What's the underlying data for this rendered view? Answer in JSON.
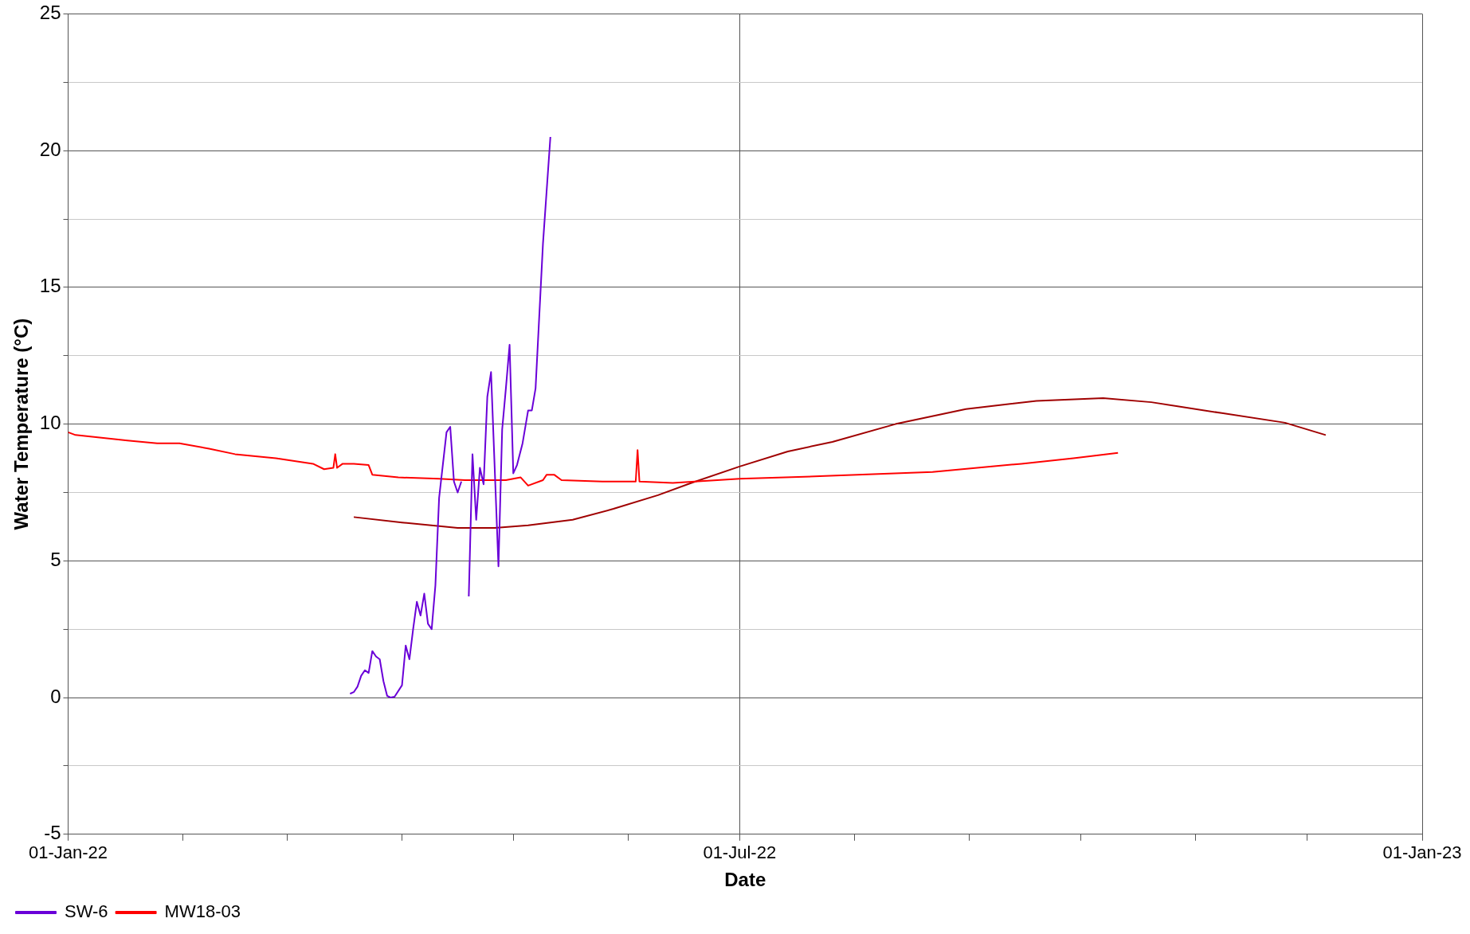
{
  "chart_data": {
    "type": "line",
    "xlabel": "Date",
    "ylabel": "Water Temperature (°C)",
    "xlim": [
      "2022-01-01",
      "2023-01-01"
    ],
    "xticks": [
      {
        "value": "2022-01-01",
        "label": "01-Jan-22"
      },
      {
        "value": "2022-02-01",
        "label": null
      },
      {
        "value": "2022-03-01",
        "label": null
      },
      {
        "value": "2022-04-01",
        "label": null
      },
      {
        "value": "2022-05-01",
        "label": null
      },
      {
        "value": "2022-06-01",
        "label": null
      },
      {
        "value": "2022-07-01",
        "label": "01-Jul-22"
      },
      {
        "value": "2022-08-01",
        "label": null
      },
      {
        "value": "2022-09-01",
        "label": null
      },
      {
        "value": "2022-10-01",
        "label": null
      },
      {
        "value": "2022-11-01",
        "label": null
      },
      {
        "value": "2022-12-01",
        "label": null
      },
      {
        "value": "2023-01-01",
        "label": "01-Jan-23"
      }
    ],
    "ylim": [
      -5,
      25
    ],
    "yticks": [
      -5,
      {
        "value": -2.5,
        "label": null
      },
      0,
      {
        "value": 2.5,
        "label": null
      },
      5,
      {
        "value": 7.5,
        "label": null
      },
      10,
      {
        "value": 12.5,
        "label": null
      },
      15,
      {
        "value": 17.5,
        "label": null
      },
      20,
      {
        "value": 22.5,
        "label": null
      },
      25
    ],
    "grid": true,
    "legend": "bottom left",
    "marker": "none",
    "line_style": "solid",
    "series": [
      {
        "name": "SW-6",
        "color": "#6a00d8",
        "x": [
          "2022-03-18",
          "2022-03-19",
          "2022-03-20",
          "2022-03-21",
          "2022-03-22",
          "2022-03-23",
          "2022-03-24",
          "2022-03-25",
          "2022-03-26",
          "2022-03-27",
          "2022-03-28",
          "2022-03-29",
          "2022-03-30",
          "2022-04-01",
          "2022-04-02",
          "2022-04-03",
          "2022-04-04",
          "2022-04-05",
          "2022-04-06",
          "2022-04-07",
          "2022-04-08",
          "2022-04-09",
          "2022-04-10",
          "2022-04-11",
          "2022-04-13",
          "2022-04-14",
          "2022-04-15",
          "2022-04-16",
          "2022-04-17",
          "2022-04-18",
          "2022-04-19",
          "2022-04-20",
          "2022-04-21",
          "2022-04-22",
          "2022-04-23",
          "2022-04-24",
          "2022-04-25",
          "2022-04-27",
          "2022-04-28",
          "2022-04-29",
          "2022-04-30",
          "2022-05-01",
          "2022-05-02",
          "2022-05-03T12:00",
          "2022-05-05",
          "2022-05-06",
          "2022-05-07",
          "2022-05-09",
          "2022-05-11"
        ],
        "values": [
          0.14,
          0.2,
          0.4,
          0.8,
          1.0,
          0.9,
          1.7,
          1.5,
          1.4,
          0.6,
          0.06,
          0,
          0.03,
          0.45,
          1.9,
          1.4,
          2.5,
          3.5,
          3.0,
          3.8,
          2.7,
          2.5,
          4.1,
          7.3,
          9.7,
          9.9,
          7.9,
          7.5,
          7.9,
          null,
          3.7,
          8.9,
          6.5,
          8.4,
          7.8,
          11.0,
          11.9,
          4.8,
          9.8,
          11.3,
          12.9,
          8.2,
          8.5,
          9.3,
          10.5,
          10.5,
          11.3,
          16.6,
          20.5
        ]
      },
      {
        "name": "MW18-03",
        "color": "#ff0000",
        "x": [
          "2022-01-01",
          "2022-01-03",
          "2022-01-10",
          "2022-01-17",
          "2022-01-25",
          "2022-01-31",
          "2022-02-08",
          "2022-02-15",
          "2022-02-26",
          "2022-03-08",
          "2022-03-11",
          "2022-03-13T12:00",
          "2022-03-14T00:00",
          "2022-03-14T12:00",
          "2022-03-16",
          "2022-03-19",
          "2022-03-23",
          "2022-03-24",
          "2022-03-31",
          "2022-04-11",
          "2022-04-18",
          "2022-04-29",
          "2022-05-03",
          "2022-05-05",
          "2022-05-09",
          "2022-05-10",
          "2022-05-12",
          "2022-05-14",
          "2022-05-25",
          "2022-06-03",
          "2022-06-03T12:00",
          "2022-06-04",
          "2022-06-13",
          "2022-07-01",
          "2022-07-24",
          "2022-08-22",
          "2022-09-15",
          "2022-09-29",
          "2022-10-11"
        ],
        "values": [
          9.7,
          9.6,
          9.5,
          9.4,
          9.3,
          9.3,
          9.1,
          8.9,
          8.75,
          8.55,
          8.35,
          8.4,
          8.9,
          8.4,
          8.55,
          8.55,
          8.5,
          8.15,
          8.05,
          8.0,
          7.95,
          7.95,
          8.05,
          7.75,
          7.95,
          8.15,
          8.15,
          7.95,
          7.9,
          7.9,
          9.05,
          7.9,
          7.85,
          8.0,
          8.1,
          8.25,
          8.55,
          8.75,
          8.95
        ]
      },
      {
        "color": "#a00000",
        "x": [
          "2022-03-19",
          "2022-04-01",
          "2022-04-16",
          "2022-04-26",
          "2022-05-05",
          "2022-05-17",
          "2022-05-28",
          "2022-06-09",
          "2022-06-18",
          "2022-07-01",
          "2022-07-14",
          "2022-07-26",
          "2022-08-12",
          "2022-08-31",
          "2022-09-19",
          "2022-10-07",
          "2022-10-20",
          "2022-11-08",
          "2022-11-25",
          "2022-12-06"
        ],
        "values": [
          6.6,
          6.4,
          6.2,
          6.2,
          6.3,
          6.5,
          6.9,
          7.4,
          7.85,
          8.45,
          9.0,
          9.35,
          10.0,
          10.55,
          10.85,
          10.95,
          10.8,
          10.4,
          10.05,
          9.6
        ]
      }
    ]
  }
}
